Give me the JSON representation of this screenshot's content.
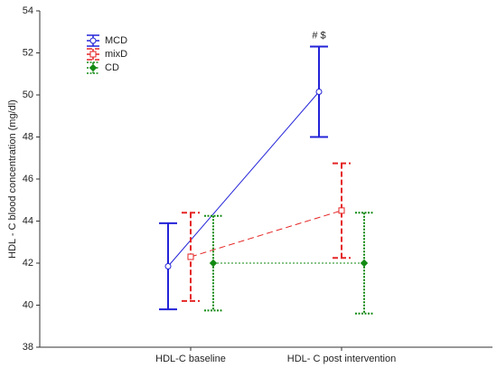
{
  "chart_data": {
    "type": "line-errorbar",
    "y_label": "HDL - C blood concentration (mg/dl)",
    "categories": [
      "HDL-C baseline",
      "HDL- C post intervention"
    ],
    "series": [
      {
        "name": "MCD",
        "color": "#2323d8",
        "style": "solid",
        "marker": "circle",
        "values": [
          41.85,
          50.15
        ],
        "errors": [
          2.05,
          2.15
        ]
      },
      {
        "name": "mixD",
        "color": "#e52525",
        "style": "dashed",
        "marker": "square",
        "values": [
          42.3,
          44.5
        ],
        "errors": [
          2.1,
          2.25
        ]
      },
      {
        "name": "CD",
        "color": "#128a12",
        "style": "dotted",
        "marker": "diamond",
        "values": [
          42.0,
          42.0
        ],
        "errors": [
          2.25,
          2.4
        ]
      }
    ],
    "annotation": "# $",
    "ylim": [
      38,
      54
    ],
    "yticks": [
      38,
      40,
      42,
      44,
      46,
      48,
      50,
      52,
      54
    ]
  }
}
